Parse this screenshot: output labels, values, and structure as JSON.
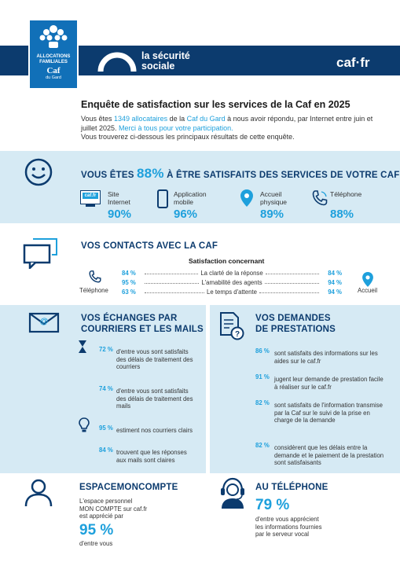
{
  "header": {
    "caf_logo": {
      "line1": "ALLOCATIONS",
      "line2": "FAMILIALES",
      "caf": "Caf",
      "gard": "du Gard"
    },
    "secu_line1": "la sécurité",
    "secu_line2": "sociale",
    "cafr": "caf·fr"
  },
  "intro": {
    "title": "Enquête de satisfaction sur les services de la Caf en 2025",
    "p1_a": "Vous êtes ",
    "p1_count": "1349 allocataires",
    "p1_b": " de la ",
    "p1_caf": "Caf du Gard",
    "p1_c": " à nous avoir répondu, par Internet entre juin et juillet 2025. ",
    "p1_thanks": "Merci à tous pour votre participation.",
    "p2": "Vous trouverez ci-dessous les principaux résultats de cette enquête."
  },
  "satisfaction": {
    "head_a": "VOUS ÊTES",
    "pct": "88%",
    "head_b": "À ÊTRE SATISFAITS DES SERVICES DE VOTRE CAF",
    "channels": [
      {
        "label1": "Site",
        "label2": "Internet",
        "value": "90%",
        "icon": "website-icon",
        "icon_text": "caf.fr"
      },
      {
        "label1": "Application",
        "label2": "mobile",
        "value": "96%",
        "icon": "mobile-phone-icon"
      },
      {
        "label1": "Accueil",
        "label2": "physique",
        "value": "89%",
        "icon": "location-pin-icon"
      },
      {
        "label1": "Téléphone",
        "label2": "",
        "value": "88%",
        "icon": "telephone-icon"
      }
    ]
  },
  "contacts": {
    "head": "VOS CONTACTS AVEC LA CAF",
    "subhead": "Satisfaction concernant",
    "left_label": "Téléphone",
    "right_label": "Accueil",
    "rows": [
      {
        "left": "84 %",
        "criterion": "La clarté de la réponse",
        "right": "84 %"
      },
      {
        "left": "95 %",
        "criterion": "L'amabilité des agents",
        "right": "94 %"
      },
      {
        "left": "63 %",
        "criterion": "Le temps d'attente",
        "right": "94 %"
      }
    ]
  },
  "mails": {
    "head1": "VOS ÉCHANGES PAR",
    "head2": "COURRIERS ET LES MAILS",
    "items": [
      {
        "pct": "72 %",
        "text": "d'entre vous sont satisfaits des délais de traitement des courriers"
      },
      {
        "pct": "74 %",
        "text": "d'entre vous sont satisfaits des délais de traitement des mails"
      },
      {
        "pct": "95 %",
        "text": "estiment nos courriers clairs"
      },
      {
        "pct": "84 %",
        "text": "trouvent que les réponses aux mails sont claires"
      }
    ]
  },
  "prestations": {
    "head1": "VOS DEMANDES",
    "head2": "DE PRESTATIONS",
    "items": [
      {
        "pct": "86 %",
        "text": "sont satisfaits des informations sur les aides sur le caf.fr"
      },
      {
        "pct": "91 %",
        "text": "jugent leur demande de prestation facile à réaliser sur le caf.fr"
      },
      {
        "pct": "82 %",
        "text": "sont satisfaits de l'information transmise par la Caf sur le suivi de la prise en charge de la demande"
      },
      {
        "pct": "82 %",
        "text": "considèrent que les délais entre la demande et le paiement de la prestation sont satisfaisants"
      }
    ]
  },
  "espace": {
    "head": "ESPACEMONCOMPTE",
    "line1": "L'espace personnel",
    "line2": "MON COMPTE sur caf.fr",
    "line3": "est apprécié par",
    "pct": "95 %",
    "line4": "d'entre vous"
  },
  "telephone": {
    "head": "AU TÉLÉPHONE",
    "pct": "79 %",
    "line1": "d'entre vous apprécient",
    "line2": "les informations fournies",
    "line3": "par le serveur vocal"
  },
  "colors": {
    "navy": "#0c3b6e",
    "accent": "#1ea0dc",
    "band": "#d6eaf4"
  }
}
